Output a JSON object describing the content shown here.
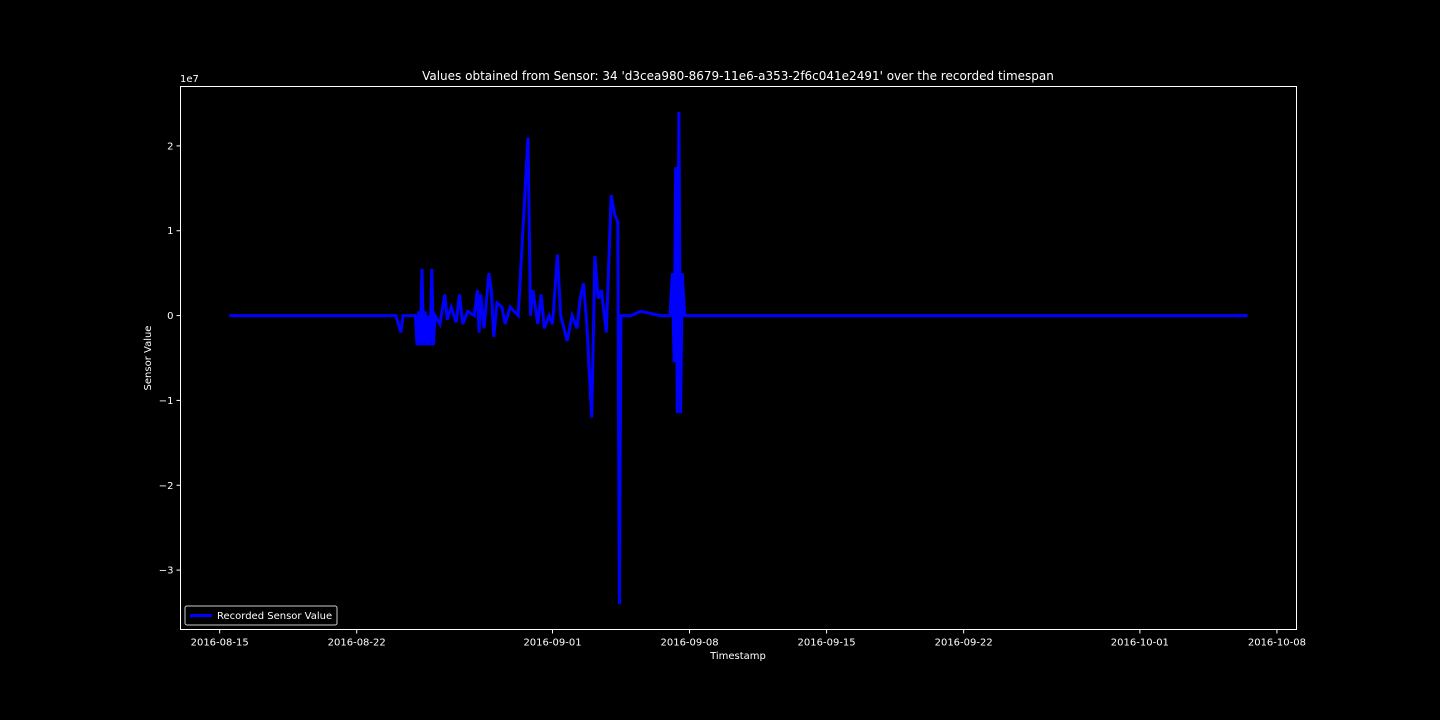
{
  "chart_data": {
    "type": "line",
    "title": "Values obtained from Sensor: 34 'd3cea980-8679-11e6-a353-2f6c041e2491' over the recorded timespan",
    "xlabel": "Timestamp",
    "ylabel": "Sensor Value",
    "y_offset_label": "1e7",
    "y_multiplier": 10000000,
    "xlim": [
      "2016-08-13",
      "2016-10-09"
    ],
    "ylim": [
      -3.7,
      2.7
    ],
    "x_ticks": [
      "2016-08-15",
      "2016-08-22",
      "2016-09-01",
      "2016-09-08",
      "2016-09-15",
      "2016-09-22",
      "2016-10-01",
      "2016-10-08"
    ],
    "y_ticks": [
      2,
      1,
      0,
      -1,
      -2,
      -3
    ],
    "y_tick_labels": [
      "2",
      "1",
      "0",
      "−1",
      "−2",
      "−3"
    ],
    "grid": false,
    "legend_position": "lower-left",
    "series": [
      {
        "name": "Recorded Sensor Value",
        "color": "#0000ff",
        "points": [
          [
            "2016-08-15 12:00",
            0
          ],
          [
            "2016-08-24 00:00",
            0
          ],
          [
            "2016-08-24 06:00",
            -0.2
          ],
          [
            "2016-08-24 09:00",
            0
          ],
          [
            "2016-08-25 00:00",
            0
          ],
          [
            "2016-08-25 02:00",
            -0.35
          ],
          [
            "2016-08-25 04:00",
            0.05
          ],
          [
            "2016-08-25 06:00",
            -0.35
          ],
          [
            "2016-08-25 08:00",
            0.55
          ],
          [
            "2016-08-25 10:00",
            -0.35
          ],
          [
            "2016-08-25 12:00",
            0.05
          ],
          [
            "2016-08-25 14:00",
            -0.35
          ],
          [
            "2016-08-25 16:00",
            0
          ],
          [
            "2016-08-25 18:00",
            -0.35
          ],
          [
            "2016-08-25 20:00",
            0.55
          ],
          [
            "2016-08-25 22:00",
            -0.35
          ],
          [
            "2016-08-26 00:00",
            0
          ],
          [
            "2016-08-26 06:00",
            -0.1
          ],
          [
            "2016-08-26 12:00",
            0.25
          ],
          [
            "2016-08-26 15:00",
            -0.05
          ],
          [
            "2016-08-26 20:00",
            0.1
          ],
          [
            "2016-08-27 02:00",
            -0.08
          ],
          [
            "2016-08-27 06:00",
            0.25
          ],
          [
            "2016-08-27 10:00",
            -0.1
          ],
          [
            "2016-08-27 16:00",
            0.05
          ],
          [
            "2016-08-28 00:00",
            0
          ],
          [
            "2016-08-28 04:00",
            0.3
          ],
          [
            "2016-08-28 06:00",
            -0.2
          ],
          [
            "2016-08-28 08:00",
            0.25
          ],
          [
            "2016-08-28 12:00",
            -0.15
          ],
          [
            "2016-08-28 18:00",
            0.5
          ],
          [
            "2016-08-28 21:00",
            0.3
          ],
          [
            "2016-08-29 00:00",
            -0.25
          ],
          [
            "2016-08-29 04:00",
            0.15
          ],
          [
            "2016-08-29 10:00",
            0.1
          ],
          [
            "2016-08-29 14:00",
            -0.1
          ],
          [
            "2016-08-29 20:00",
            0.1
          ],
          [
            "2016-08-30 06:00",
            0
          ],
          [
            "2016-08-30 18:00",
            2.1
          ],
          [
            "2016-08-30 21:00",
            0
          ],
          [
            "2016-08-31 00:00",
            0.3
          ],
          [
            "2016-08-31 06:00",
            -0.1
          ],
          [
            "2016-08-31 10:00",
            0.25
          ],
          [
            "2016-08-31 14:00",
            -0.15
          ],
          [
            "2016-08-31 20:00",
            0
          ],
          [
            "2016-09-01 00:00",
            -0.1
          ],
          [
            "2016-09-01 06:00",
            0.72
          ],
          [
            "2016-09-01 10:00",
            0
          ],
          [
            "2016-09-01 18:00",
            -0.3
          ],
          [
            "2016-09-02 00:00",
            0
          ],
          [
            "2016-09-02 06:00",
            -0.15
          ],
          [
            "2016-09-02 10:00",
            0.2
          ],
          [
            "2016-09-02 14:00",
            0.38
          ],
          [
            "2016-09-02 18:00",
            -0.1
          ],
          [
            "2016-09-03 00:00",
            -1.2
          ],
          [
            "2016-09-03 04:00",
            0.7
          ],
          [
            "2016-09-03 08:00",
            0.2
          ],
          [
            "2016-09-03 12:00",
            0.3
          ],
          [
            "2016-09-03 18:00",
            -0.2
          ],
          [
            "2016-09-04 00:00",
            1.42
          ],
          [
            "2016-09-04 04:00",
            1.2
          ],
          [
            "2016-09-04 08:00",
            1.1
          ],
          [
            "2016-09-04 10:00",
            -3.4
          ],
          [
            "2016-09-04 12:00",
            0
          ],
          [
            "2016-09-05 00:00",
            0
          ],
          [
            "2016-09-05 12:00",
            0.05
          ],
          [
            "2016-09-06 12:00",
            0
          ],
          [
            "2016-09-07 00:00",
            0
          ],
          [
            "2016-09-07 03:00",
            0.5
          ],
          [
            "2016-09-07 05:00",
            -0.55
          ],
          [
            "2016-09-07 07:00",
            1.75
          ],
          [
            "2016-09-07 09:00",
            -1.15
          ],
          [
            "2016-09-07 11:00",
            2.4
          ],
          [
            "2016-09-07 13:00",
            -1.15
          ],
          [
            "2016-09-07 15:00",
            0.5
          ],
          [
            "2016-09-07 18:00",
            0
          ],
          [
            "2016-10-06 12:00",
            0
          ]
        ]
      }
    ]
  }
}
